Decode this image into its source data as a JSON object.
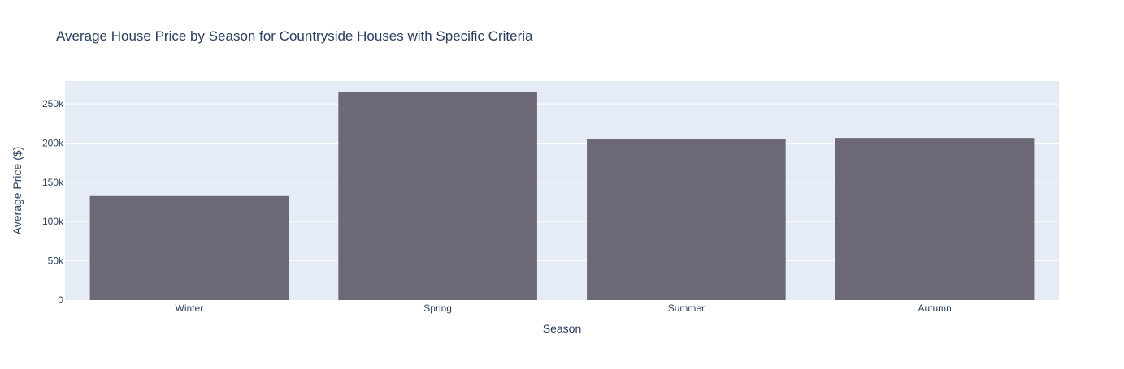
{
  "chart_data": {
    "type": "bar",
    "title": "Average House Price by Season for Countryside Houses with Specific Criteria",
    "xlabel": "Season",
    "ylabel": "Average Price ($)",
    "categories": [
      "Winter",
      "Spring",
      "Summer",
      "Autumn"
    ],
    "values": [
      132500,
      265000,
      205500,
      206500
    ],
    "ylim": [
      0,
      279000
    ],
    "yticks": [
      0,
      50000,
      100000,
      150000,
      200000,
      250000
    ],
    "ytick_labels": [
      "0",
      "50k",
      "100k",
      "150k",
      "200k",
      "250k"
    ],
    "grid": true,
    "legend": "none",
    "colors": {
      "bar": "#6d6875",
      "plot_background": "#e5ecf6",
      "grid": "#ffffff",
      "text": "#2a3f5f"
    }
  }
}
